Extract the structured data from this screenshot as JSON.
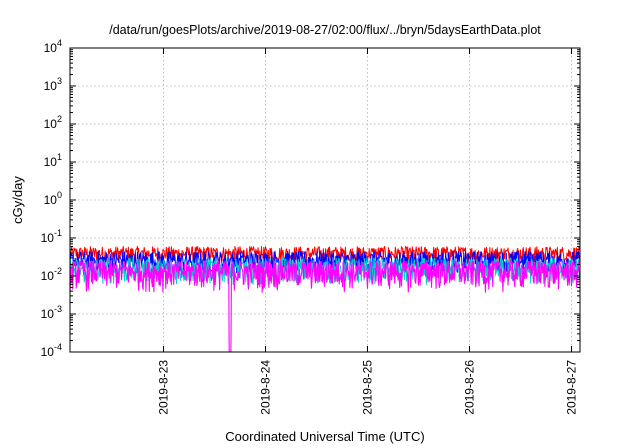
{
  "chart_data": {
    "type": "line",
    "title": "/data/run/goesPlots/archive/2019-08-27/02:00/flux/../bryn/5daysEarthData.plot",
    "xlabel": "Coordinated Universal Time (UTC)",
    "ylabel": "cGy/day",
    "yscale": "log",
    "ylim": [
      0.0001,
      10000
    ],
    "xlim": [
      "2019-08-22T02:00",
      "2019-08-27T02:00"
    ],
    "grid": true,
    "x_ticks": [
      "2019-8-23",
      "2019-8-24",
      "2019-8-25",
      "2019-8-26",
      "2019-8-27"
    ],
    "y_ticks": [
      {
        "base": "10",
        "exp": "-4"
      },
      {
        "base": "10",
        "exp": "-3"
      },
      {
        "base": "10",
        "exp": "-2"
      },
      {
        "base": "10",
        "exp": "-1"
      },
      {
        "base": "10",
        "exp": "0"
      },
      {
        "base": "10",
        "exp": "1"
      },
      {
        "base": "10",
        "exp": "2"
      },
      {
        "base": "10",
        "exp": "3"
      },
      {
        "base": "10",
        "exp": "4"
      }
    ],
    "series": [
      {
        "color": "#ff0000",
        "low": 0.022,
        "high": 0.06
      },
      {
        "color": "#0000ff",
        "low": 0.012,
        "high": 0.045
      },
      {
        "color": "#00cccc",
        "low": 0.006,
        "high": 0.03
      },
      {
        "color": "#ff00ff",
        "low": 0.0035,
        "high": 0.025
      }
    ],
    "annotations": [
      {
        "series_color": "#ff00ff",
        "time": "2019-08-23T15:40",
        "value": 0.0001,
        "note": "dropout"
      }
    ]
  }
}
